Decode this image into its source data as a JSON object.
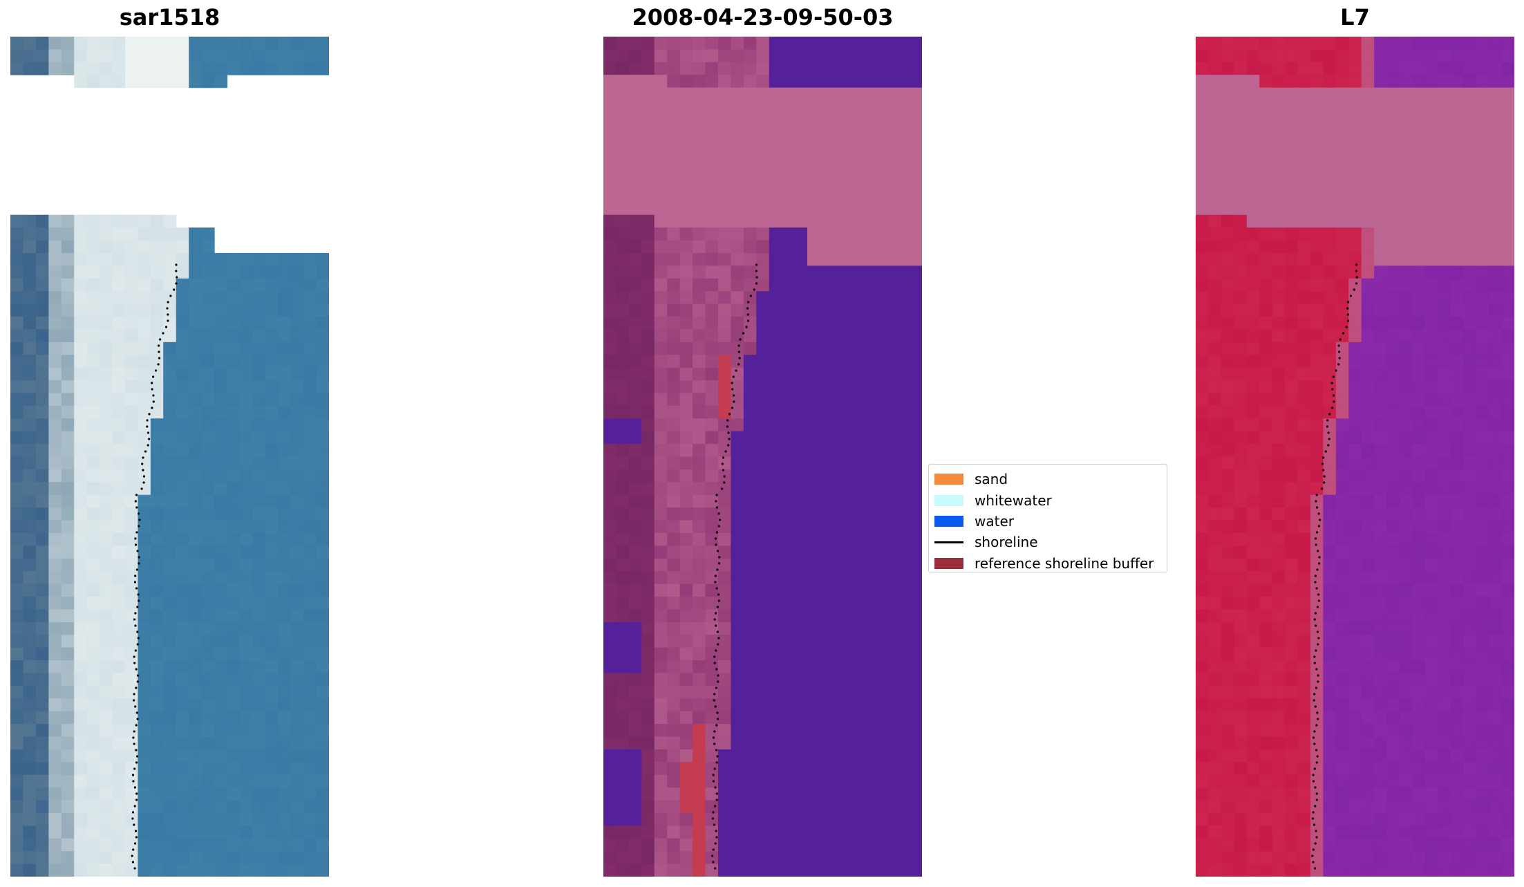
{
  "panels": [
    {
      "id": "rgb",
      "title": "sar1518"
    },
    {
      "id": "classified",
      "title": "2008-04-23-09-50-03"
    },
    {
      "id": "index",
      "title": "L7"
    }
  ],
  "legend": [
    {
      "label": "sand",
      "color": "#f58a3a",
      "kind": "patch"
    },
    {
      "label": "whitewater",
      "color": "#c8fbff",
      "kind": "patch"
    },
    {
      "label": "water",
      "color": "#0a5af0",
      "kind": "patch"
    },
    {
      "label": "shoreline",
      "color": "#000000",
      "kind": "line"
    },
    {
      "label": "reference shoreline buffer",
      "color": "#9a2e3a",
      "kind": "patch"
    }
  ],
  "colors": {
    "rgb_ocean": "#3a7aa6",
    "rgb_surf": "#dfe8ea",
    "class_water": "#55219a",
    "class_buffer": "#c43c50",
    "class_land": "#b8649a",
    "index_land": "#c81a48",
    "index_water": "#8a2aa8",
    "nodata_pink": "#bd6694",
    "shoreline": "#000000"
  }
}
